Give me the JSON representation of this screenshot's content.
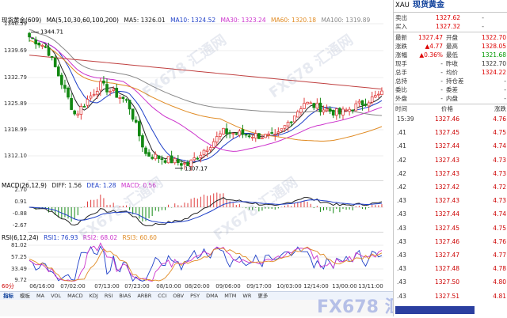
{
  "main_chart": {
    "legend": {
      "title": "现货黄金(609)",
      "ma_label": "MA(5,10,30,60,100,200)",
      "ma5": "MA5: 1326.01",
      "ma10": "MA10: 1324.52",
      "ma30": "MA30: 1323.24",
      "ma60": "MA60: 1320.18",
      "ma100": "MA100: 1319.89"
    },
    "y_ticks": [
      "1346.59",
      "1339.69",
      "1332.79",
      "1325.89",
      "1318.99",
      "1312.10"
    ],
    "high_mark": "1344.71",
    "low_mark": "1307.17",
    "high_value": 1344.71,
    "low_value": 1307.17,
    "colors": {
      "up": "#e04040",
      "down": "#128812",
      "ma5": "#222222",
      "ma10": "#1e3fc8",
      "ma30": "#cc33cc",
      "ma60": "#e08a22",
      "ma100": "#888888",
      "ma200": "#c04040"
    }
  },
  "macd": {
    "legend": {
      "label": "MACD(26,12,9)",
      "diff": "DIFF: 1.56",
      "dea": "DEA: 1.28",
      "macd": "MACD: 0.56"
    },
    "y_ticks": [
      "2.70",
      "0.91",
      "-0.88",
      "-2.67"
    ]
  },
  "rsi": {
    "legend": {
      "label": "RSI(6,12,24)",
      "rsi1": "RSI1: 76.93",
      "rsi2": "RSI2: 68.02",
      "rsi3": "RSI3: 60.60"
    },
    "y_ticks": [
      "81.02",
      "57.25",
      "33.49",
      "9.72"
    ]
  },
  "x_labels": [
    "06/16:00",
    "07/02:00",
    "07/13:00",
    "07/23:00",
    "08/10:00",
    "08/20:00",
    "09/06:00",
    "09/17:00",
    "10/03:00",
    "12/14:00",
    "13/00:00",
    "13/11:00"
  ],
  "period": "60分",
  "tabs": [
    "指标",
    "模板",
    "MA",
    "VOL",
    "MACD",
    "KDJ",
    "RSI",
    "BIAS",
    "ARBR",
    "CCI",
    "OBV",
    "PSY",
    "DMA",
    "MTM",
    "WR",
    "更多"
  ],
  "quote": {
    "code": "XAU",
    "name": "现货黄金",
    "sell_label": "卖出",
    "sell_value": "1327.62",
    "sell_extra": "-",
    "buy_label": "买入",
    "buy_value": "1327.32",
    "buy_extra": "-",
    "last_label": "最新",
    "last_value": "1327.47",
    "open_label": "开盘",
    "open_value": "1322.70",
    "chg_label": "涨跌",
    "chg_value": "▲4.77",
    "high_label": "最高",
    "high_value": "1328.05",
    "pct_label": "涨幅",
    "pct_value": "▲0.36%",
    "low_label": "最低",
    "low_value": "1321.68",
    "vol_label": "现手",
    "vol_value": "-",
    "prev_label": "昨收",
    "prev_value": "1322.70",
    "tot_label": "总手",
    "tot_value": "-",
    "avg_label": "均价",
    "avg_value": "1324.22",
    "oi_label": "总持",
    "oi_value": "-",
    "oichg_label": "持仓差",
    "oichg_value": "-",
    "ratio_label": "委比",
    "ratio_value": "-",
    "diff_label": "委差",
    "diff_value": "-",
    "outer_label": "外盘",
    "outer_value": "-",
    "inner_label": "内盘",
    "inner_value": "-",
    "ticks_header": {
      "time": "时间",
      "price": "价格",
      "change": "涨跌"
    },
    "ticks": [
      {
        "time": "15:39",
        "price": "1327.46",
        "change": "4.76"
      },
      {
        "time": ".41",
        "price": "1327.45",
        "change": "4.75"
      },
      {
        "time": ".41",
        "price": "1327.44",
        "change": "4.74"
      },
      {
        "time": ".42",
        "price": "1327.43",
        "change": "4.73"
      },
      {
        "time": ".42",
        "price": "1327.43",
        "change": "4.73"
      },
      {
        "time": ".42",
        "price": "1327.42",
        "change": "4.72"
      },
      {
        "time": ".43",
        "price": "1327.43",
        "change": "4.73"
      },
      {
        "time": ".43",
        "price": "1327.44",
        "change": "4.74"
      },
      {
        "time": ".43",
        "price": "1327.45",
        "change": "4.75"
      },
      {
        "time": ".43",
        "price": "1327.46",
        "change": "4.76"
      },
      {
        "time": ".43",
        "price": "1327.47",
        "change": "4.77"
      },
      {
        "time": ".43",
        "price": "1327.48",
        "change": "4.78"
      },
      {
        "time": ".43",
        "price": "1327.50",
        "change": "4.80"
      },
      {
        "time": ".43",
        "price": "1327.51",
        "change": "4.81"
      }
    ]
  },
  "watermark": "FX678 汇通网"
}
